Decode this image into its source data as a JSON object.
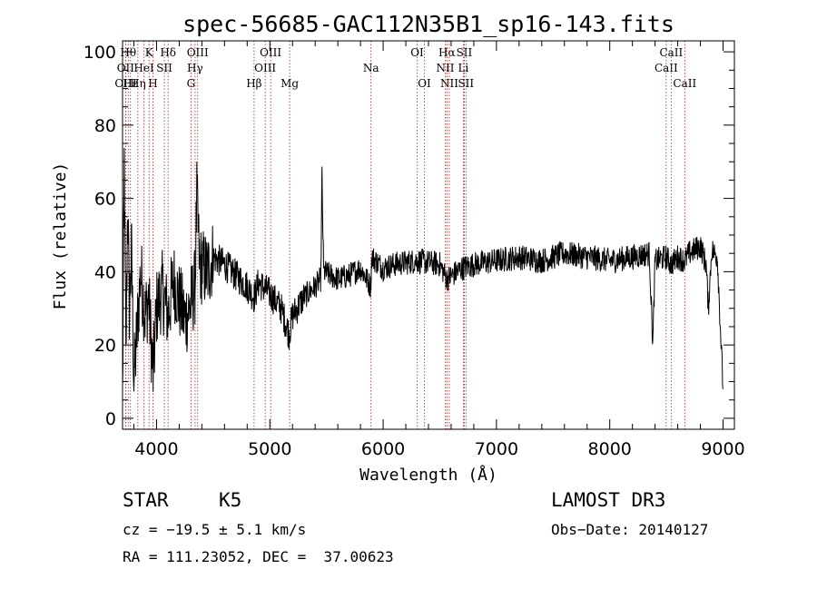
{
  "chart_data": {
    "type": "line",
    "title": "spec-56685-GAC112N35B1_sp16-143.fits",
    "xlabel": "Wavelength (Å)",
    "ylabel": "Flux (relative)",
    "xlim": [
      3700,
      9100
    ],
    "ylim": [
      -3,
      103
    ],
    "xticks": [
      4000,
      5000,
      6000,
      7000,
      8000,
      9000
    ],
    "yticks": [
      0,
      20,
      40,
      60,
      80,
      100
    ],
    "line_color": "#000000",
    "marker_color": "#b22222",
    "spectrum_anchors": [
      [
        3700,
        5
      ],
      [
        3715,
        70
      ],
      [
        3730,
        15
      ],
      [
        3745,
        60
      ],
      [
        3760,
        30
      ],
      [
        3780,
        45
      ],
      [
        3800,
        10
      ],
      [
        3830,
        25
      ],
      [
        3860,
        40
      ],
      [
        3900,
        28
      ],
      [
        3930,
        33
      ],
      [
        3970,
        12
      ],
      [
        4000,
        30
      ],
      [
        4050,
        35
      ],
      [
        4102,
        28
      ],
      [
        4150,
        38
      ],
      [
        4200,
        32
      ],
      [
        4250,
        27
      ],
      [
        4300,
        31
      ],
      [
        4340,
        36
      ],
      [
        4355,
        60
      ],
      [
        4380,
        42
      ],
      [
        4450,
        40
      ],
      [
        4500,
        44
      ],
      [
        4600,
        42
      ],
      [
        4700,
        39
      ],
      [
        4800,
        36
      ],
      [
        4861,
        33
      ],
      [
        4900,
        37
      ],
      [
        5000,
        34
      ],
      [
        5100,
        30
      ],
      [
        5170,
        23
      ],
      [
        5200,
        28
      ],
      [
        5300,
        33
      ],
      [
        5400,
        36
      ],
      [
        5450,
        38
      ],
      [
        5460,
        66
      ],
      [
        5475,
        40
      ],
      [
        5600,
        38
      ],
      [
        5700,
        39
      ],
      [
        5800,
        41
      ],
      [
        5889,
        36
      ],
      [
        5900,
        44
      ],
      [
        6000,
        41
      ],
      [
        6100,
        42
      ],
      [
        6300,
        43
      ],
      [
        6500,
        42
      ],
      [
        6563,
        38
      ],
      [
        6700,
        41
      ],
      [
        6800,
        42
      ],
      [
        7000,
        43
      ],
      [
        7200,
        44
      ],
      [
        7400,
        43
      ],
      [
        7600,
        45
      ],
      [
        7800,
        44
      ],
      [
        8000,
        43
      ],
      [
        8200,
        44
      ],
      [
        8350,
        45
      ],
      [
        8380,
        20
      ],
      [
        8400,
        43
      ],
      [
        8498,
        44
      ],
      [
        8542,
        42
      ],
      [
        8600,
        44
      ],
      [
        8662,
        43
      ],
      [
        8700,
        45
      ],
      [
        8800,
        47
      ],
      [
        8850,
        42
      ],
      [
        8870,
        30
      ],
      [
        8900,
        46
      ],
      [
        8950,
        44
      ],
      [
        9000,
        8
      ]
    ],
    "lines": [
      {
        "label": "OII",
        "x": 3727,
        "row": 2
      },
      {
        "label": "OIII",
        "x": 3727,
        "row": 3
      },
      {
        "label": "Hθ",
        "x": 3750,
        "row": 1
      },
      {
        "label": "Hε",
        "x": 3770,
        "row": 3
      },
      {
        "label": "Hη",
        "x": 3835,
        "row": 3
      },
      {
        "label": "HeI",
        "x": 3889,
        "row": 2
      },
      {
        "label": "K",
        "x": 3934,
        "row": 1
      },
      {
        "label": "H",
        "x": 3968,
        "row": 3
      },
      {
        "label": "SII",
        "x": 4069,
        "row": 2
      },
      {
        "label": "Hδ",
        "x": 4102,
        "row": 1
      },
      {
        "label": "G",
        "x": 4304,
        "row": 3
      },
      {
        "label": "Hγ",
        "x": 4340,
        "row": 2
      },
      {
        "label": "OIII",
        "x": 4363,
        "row": 1
      },
      {
        "label": "Hβ",
        "x": 4861,
        "row": 3
      },
      {
        "label": "OIII",
        "x": 4959,
        "row": 2
      },
      {
        "label": "OIII",
        "x": 5007,
        "row": 1
      },
      {
        "label": "Mg",
        "x": 5175,
        "row": 3
      },
      {
        "label": "Na",
        "x": 5893,
        "row": 2
      },
      {
        "label": "OI",
        "x": 6300,
        "row": 1
      },
      {
        "label": "OI",
        "x": 6364,
        "row": 3
      },
      {
        "label": "NII",
        "x": 6548,
        "row": 2
      },
      {
        "label": "Hα",
        "x": 6563,
        "row": 1
      },
      {
        "label": "NII",
        "x": 6584,
        "row": 3
      },
      {
        "label": "Li",
        "x": 6708,
        "row": 2
      },
      {
        "label": "SII",
        "x": 6716,
        "row": 1
      },
      {
        "label": "SII",
        "x": 6731,
        "row": 3
      },
      {
        "label": "CaII",
        "x": 8498,
        "row": 2
      },
      {
        "label": "CaII",
        "x": 8542,
        "row": 1
      },
      {
        "label": "CaII",
        "x": 8662,
        "row": 3
      }
    ]
  },
  "info": {
    "object_class": "STAR",
    "subclass": "K5",
    "survey": "LAMOST DR3",
    "cz": "cz = −19.5 ± 5.1 km/s",
    "obs_date": "Obs−Date: 20140127",
    "coords": "RA = 111.23052, DEC =  37.00623"
  }
}
